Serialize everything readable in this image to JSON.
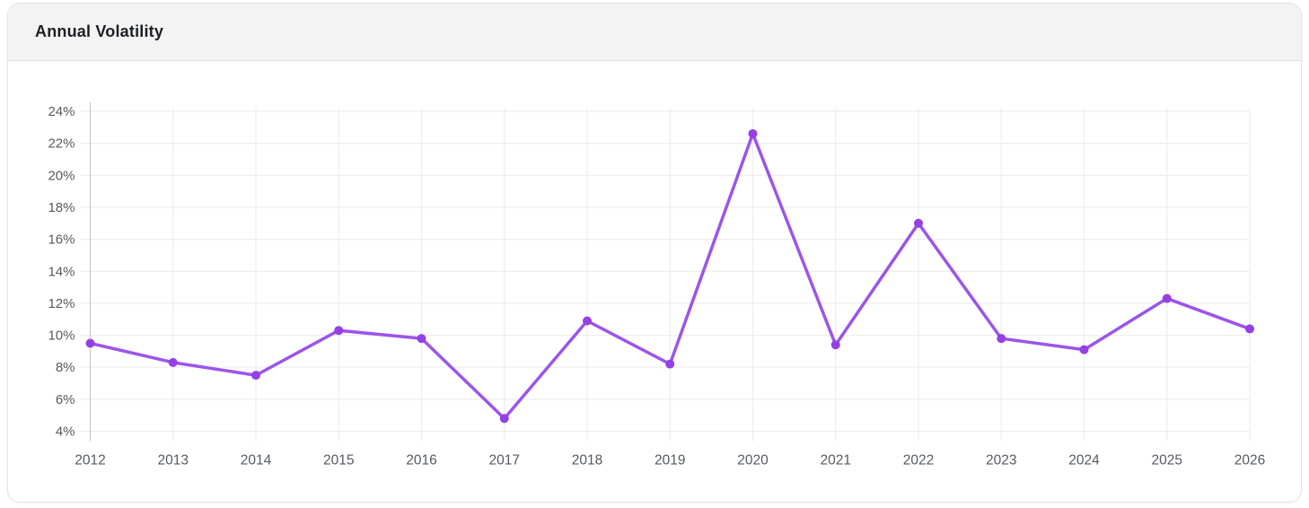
{
  "card": {
    "title": "Annual Volatility"
  },
  "theme": {
    "header_bg": "#f3f3f3",
    "header_border": "#dedede",
    "card_border": "#e4e4e4",
    "title_color": "#1b1f23",
    "grid_color": "#ededed",
    "axis_border_color": "#c8c8c8",
    "tick_label_color": "#555b61",
    "line_color": "#9b55ea",
    "point_color": "#9440e4",
    "background": "#ffffff"
  },
  "chart_data": {
    "type": "line",
    "title": "Annual Volatility",
    "categories": [
      "2012",
      "2013",
      "2014",
      "2015",
      "2016",
      "2017",
      "2018",
      "2019",
      "2020",
      "2021",
      "2022",
      "2023",
      "2024",
      "2025",
      "2026"
    ],
    "series": [
      {
        "name": "Annual Volatility",
        "values": [
          9.5,
          8.3,
          7.5,
          10.3,
          9.8,
          4.8,
          10.9,
          8.2,
          22.6,
          9.4,
          17.0,
          9.8,
          9.1,
          12.3,
          10.4
        ]
      }
    ],
    "xlabel": "",
    "ylabel": "",
    "ylim": [
      4,
      24
    ],
    "ytick_step": 2,
    "ytick_suffix": "%",
    "grid": true,
    "legend": false,
    "marker": "circle",
    "marker_radius": 5,
    "line_width": 3.5
  }
}
